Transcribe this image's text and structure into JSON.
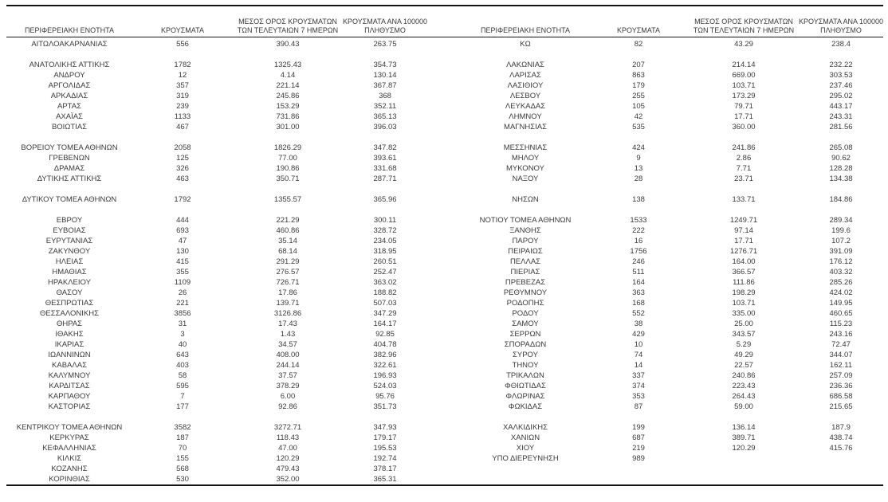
{
  "document": {
    "kind": "regional-cases-report-table",
    "language": "el"
  },
  "colors": {
    "background": "#ffffff",
    "text": "#3a3a3a",
    "rule": "#141414"
  },
  "table": {
    "headers": [
      "ΠΕΡΙΦΕΡΕΙΑΚΗ ΕΝΟΤΗΤΑ",
      "ΚΡΟΥΣΜΑΤΑ",
      "ΜΕΣΟΣ ΟΡΟΣ ΚΡΟΥΣΜΑΤΩΝ\nΤΩΝ ΤΕΛΕΥΤΑΙΩΝ 7 ΗΜΕΡΩΝ",
      "ΚΡΟΥΣΜΑΤΑ ΑΝΑ 100000\nΠΛΗΘΥΣΜΟ"
    ],
    "rows": [
      [
        "ΑΙΤΩΛΟΑΚΑΡΝΑΝΙΑΣ",
        "556",
        "390.43",
        "263.75",
        "ΚΩ",
        "82",
        "43.29",
        "238.4"
      ],
      [
        "",
        "",
        "",
        "",
        "",
        "",
        "",
        ""
      ],
      [
        "ΑΝΑΤΟΛΙΚΗΣ ΑΤΤΙΚΗΣ",
        "1782",
        "1325.43",
        "354.73",
        "ΛΑΚΩΝΙΑΣ",
        "207",
        "214.14",
        "232.22"
      ],
      [
        "ΑΝΔΡΟΥ",
        "12",
        "4.14",
        "130.14",
        "ΛΑΡΙΣΑΣ",
        "863",
        "669.00",
        "303.53"
      ],
      [
        "ΑΡΓΟΛΙΔΑΣ",
        "357",
        "221.14",
        "367.87",
        "ΛΑΣΙΘΙΟΥ",
        "179",
        "103.71",
        "237.46"
      ],
      [
        "ΑΡΚΑΔΙΑΣ",
        "319",
        "245.86",
        "368",
        "ΛΕΣΒΟΥ",
        "255",
        "173.29",
        "295.02"
      ],
      [
        "ΑΡΤΑΣ",
        "239",
        "153.29",
        "352.11",
        "ΛΕΥΚΑΔΑΣ",
        "105",
        "79.71",
        "443.17"
      ],
      [
        "ΑΧΑΪΑΣ",
        "1133",
        "731.86",
        "365.13",
        "ΛΗΜΝΟΥ",
        "42",
        "17.71",
        "243.31"
      ],
      [
        "ΒΟΙΩΤΙΑΣ",
        "467",
        "301.00",
        "396.03",
        "ΜΑΓΝΗΣΙΑΣ",
        "535",
        "360.00",
        "281.56"
      ],
      [
        "",
        "",
        "",
        "",
        "",
        "",
        "",
        ""
      ],
      [
        "ΒΟΡΕΙΟΥ ΤΟΜΕΑ ΑΘΗΝΩΝ",
        "2058",
        "1826.29",
        "347.82",
        "ΜΕΣΣΗΝΙΑΣ",
        "424",
        "241.86",
        "265.08"
      ],
      [
        "ΓΡΕΒΕΝΩΝ",
        "125",
        "77.00",
        "393.61",
        "ΜΗΛΟΥ",
        "9",
        "2.86",
        "90.62"
      ],
      [
        "ΔΡΑΜΑΣ",
        "326",
        "190.86",
        "331.68",
        "ΜΥΚΟΝΟΥ",
        "13",
        "7.71",
        "128.28"
      ],
      [
        "ΔΥΤΙΚΗΣ ΑΤΤΙΚΗΣ",
        "463",
        "350.71",
        "287.71",
        "ΝΑΞΟΥ",
        "28",
        "23.71",
        "134.38"
      ],
      [
        "",
        "",
        "",
        "",
        "",
        "",
        "",
        ""
      ],
      [
        "ΔΥΤΙΚΟΥ ΤΟΜΕΑ ΑΘΗΝΩΝ",
        "1792",
        "1355.57",
        "365.96",
        "ΝΗΣΩΝ",
        "138",
        "133.71",
        "184.86"
      ],
      [
        "",
        "",
        "",
        "",
        "",
        "",
        "",
        ""
      ],
      [
        "ΕΒΡΟΥ",
        "444",
        "221.29",
        "300.11",
        "ΝΟΤΙΟΥ ΤΟΜΕΑ ΑΘΗΝΩΝ",
        "1533",
        "1249.71",
        "289.34"
      ],
      [
        "ΕΥΒΟΙΑΣ",
        "693",
        "460.86",
        "328.72",
        "ΞΑΝΘΗΣ",
        "222",
        "97.14",
        "199.6"
      ],
      [
        "ΕΥΡΥΤΑΝΙΑΣ",
        "47",
        "35.14",
        "234.05",
        "ΠΑΡΟΥ",
        "16",
        "17.71",
        "107.2"
      ],
      [
        "ΖΑΚΥΝΘΟΥ",
        "130",
        "68.14",
        "318.95",
        "ΠΕΙΡΑΙΩΣ",
        "1756",
        "1276.71",
        "391.09"
      ],
      [
        "ΗΛΕΙΑΣ",
        "415",
        "291.29",
        "260.51",
        "ΠΕΛΛΑΣ",
        "246",
        "164.00",
        "176.12"
      ],
      [
        "ΗΜΑΘΙΑΣ",
        "355",
        "276.57",
        "252.47",
        "ΠΙΕΡΙΑΣ",
        "511",
        "366.57",
        "403.32"
      ],
      [
        "ΗΡΑΚΛΕΙΟΥ",
        "1109",
        "726.71",
        "363.02",
        "ΠΡΕΒΕΖΑΣ",
        "164",
        "111.86",
        "285.26"
      ],
      [
        "ΘΑΣΟΥ",
        "26",
        "17.86",
        "188.82",
        "ΡΕΘΥΜΝΟΥ",
        "363",
        "198.29",
        "424.02"
      ],
      [
        "ΘΕΣΠΡΩΤΙΑΣ",
        "221",
        "139.71",
        "507.03",
        "ΡΟΔΟΠΗΣ",
        "168",
        "103.71",
        "149.95"
      ],
      [
        "ΘΕΣΣΑΛΟΝΙΚΗΣ",
        "3856",
        "3126.86",
        "347.29",
        "ΡΟΔΟΥ",
        "552",
        "335.00",
        "460.65"
      ],
      [
        "ΘΗΡΑΣ",
        "31",
        "17.43",
        "164.17",
        "ΣΑΜΟΥ",
        "38",
        "25.00",
        "115.23"
      ],
      [
        "ΙΘΑΚΗΣ",
        "3",
        "1.43",
        "92.85",
        "ΣΕΡΡΩΝ",
        "429",
        "343.57",
        "243.16"
      ],
      [
        "ΙΚΑΡΙΑΣ",
        "40",
        "34.57",
        "404.78",
        "ΣΠΟΡΑΔΩΝ",
        "10",
        "5.29",
        "72.47"
      ],
      [
        "ΙΩΑΝΝΙΝΩΝ",
        "643",
        "408.00",
        "382.96",
        "ΣΥΡΟΥ",
        "74",
        "49.29",
        "344.07"
      ],
      [
        "ΚΑΒΑΛΑΣ",
        "403",
        "244.14",
        "322.61",
        "ΤΗΝΟΥ",
        "14",
        "22.57",
        "162.11"
      ],
      [
        "ΚΑΛΥΜΝΟΥ",
        "58",
        "37.57",
        "196.93",
        "ΤΡΙΚΑΛΩΝ",
        "337",
        "240.86",
        "257.09"
      ],
      [
        "ΚΑΡΔΙΤΣΑΣ",
        "595",
        "378.29",
        "524.03",
        "ΦΘΙΩΤΙΔΑΣ",
        "374",
        "223.43",
        "236.36"
      ],
      [
        "ΚΑΡΠΑΘΟΥ",
        "7",
        "6.00",
        "95.76",
        "ΦΛΩΡΙΝΑΣ",
        "353",
        "264.43",
        "686.58"
      ],
      [
        "ΚΑΣΤΟΡΙΑΣ",
        "177",
        "92.86",
        "351.73",
        "ΦΩΚΙΔΑΣ",
        "87",
        "59.00",
        "215.65"
      ],
      [
        "",
        "",
        "",
        "",
        "",
        "",
        "",
        ""
      ],
      [
        "ΚΕΝΤΡΙΚΟΥ ΤΟΜΕΑ ΑΘΗΝΩΝ",
        "3582",
        "3272.71",
        "347.93",
        "ΧΑΛΚΙΔΙΚΗΣ",
        "199",
        "136.14",
        "187.9"
      ],
      [
        "ΚΕΡΚΥΡΑΣ",
        "187",
        "118.43",
        "179.17",
        "ΧΑΝΙΩΝ",
        "687",
        "389.71",
        "438.74"
      ],
      [
        "ΚΕΦΑΛΛΗΝΙΑΣ",
        "70",
        "47.00",
        "195.53",
        "ΧΙΟΥ",
        "219",
        "120.29",
        "415.76"
      ],
      [
        "ΚΙΛΚΙΣ",
        "155",
        "120.29",
        "192.74",
        "ΥΠΟ ΔΙΕΡΕΥΝΗΣΗ",
        "989",
        "",
        ""
      ],
      [
        "ΚΟΖΑΝΗΣ",
        "568",
        "479.43",
        "378.17",
        "",
        "",
        "",
        ""
      ],
      [
        "ΚΟΡΙΝΘΙΑΣ",
        "530",
        "352.00",
        "365.31",
        "",
        "",
        "",
        ""
      ]
    ]
  }
}
